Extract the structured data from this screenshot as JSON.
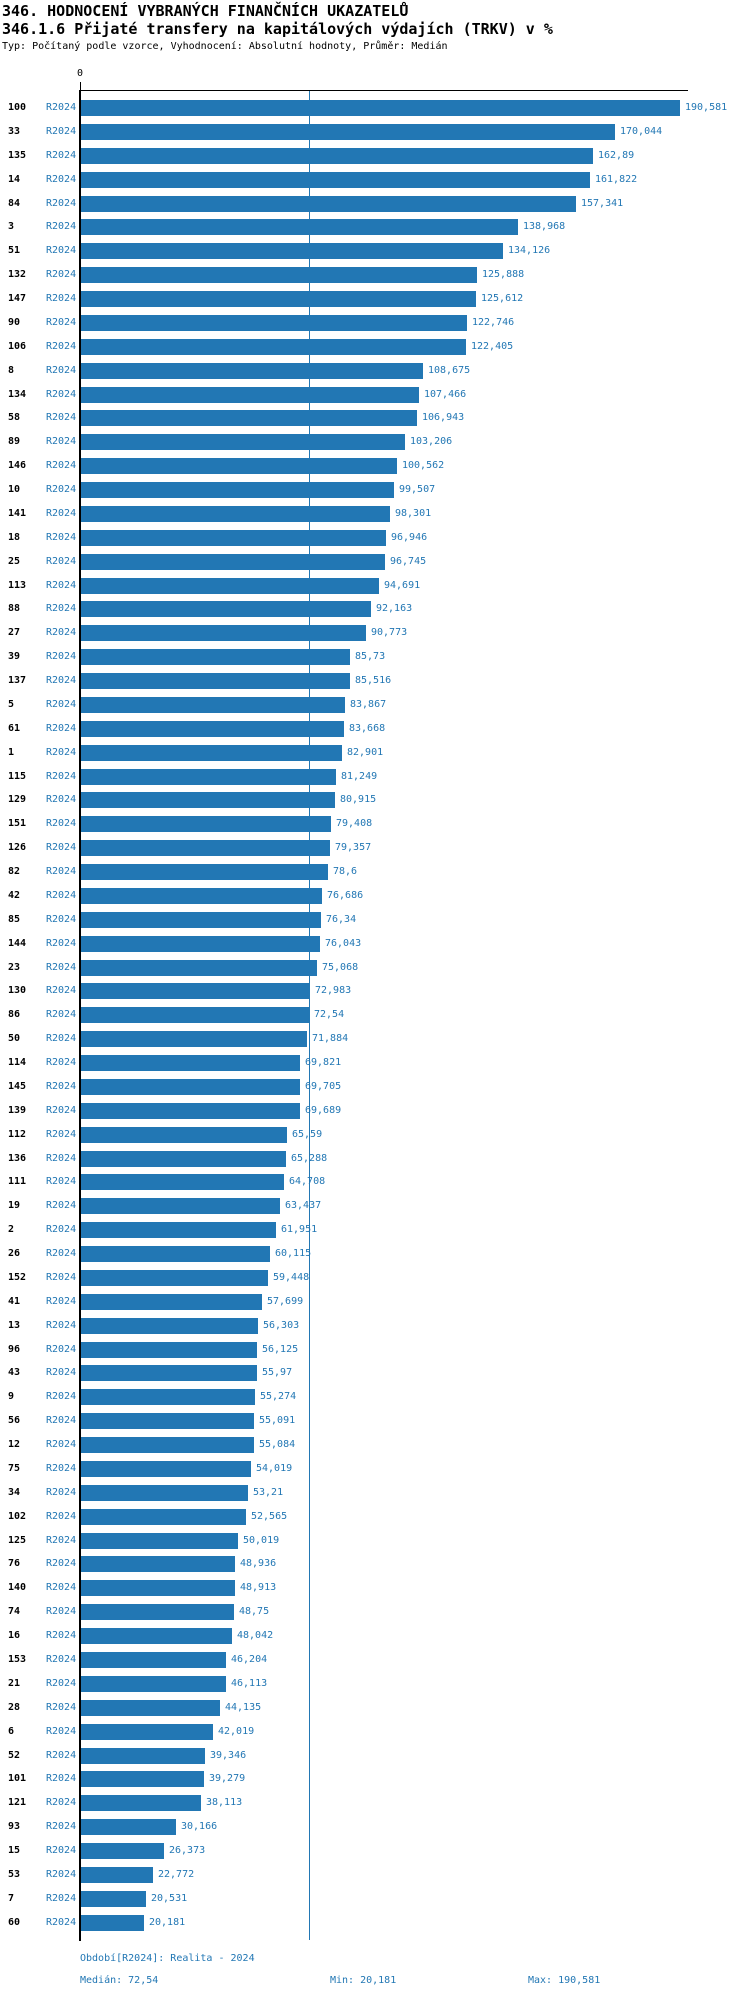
{
  "page": {
    "title": "346. HODNOCENÍ VYBRANÝCH FINANČNÍCH UKAZATELŮ",
    "subtitle": "346.1.6 Přijaté transfery na kapitálových výdajích (TRKV) v %",
    "meta": "Typ: Počítaný podle vzorce, Vyhodnocení: Absolutní hodnoty, Průměr: Medián"
  },
  "chart_data": {
    "type": "bar",
    "orientation": "horizontal",
    "title": "346.1.6 Přijaté transfery na kapitálových výdajích (TRKV) v %",
    "series_label": "R2024",
    "axis": {
      "zero_label": "0",
      "xlim": [
        0,
        192
      ],
      "grid": false
    },
    "bar_color": "#2277b4",
    "axis_color": "#000000",
    "median": 72.54,
    "min": 20.181,
    "max": 190.581,
    "categories": [
      "100",
      "33",
      "135",
      "14",
      "84",
      "3",
      "51",
      "132",
      "147",
      "90",
      "106",
      "8",
      "134",
      "58",
      "89",
      "146",
      "10",
      "141",
      "18",
      "25",
      "113",
      "88",
      "27",
      "39",
      "137",
      "5",
      "61",
      "1",
      "115",
      "129",
      "151",
      "126",
      "82",
      "42",
      "85",
      "144",
      "23",
      "130",
      "86",
      "50",
      "114",
      "145",
      "139",
      "112",
      "136",
      "111",
      "19",
      "2",
      "26",
      "152",
      "41",
      "13",
      "96",
      "43",
      "9",
      "56",
      "12",
      "75",
      "34",
      "102",
      "125",
      "76",
      "140",
      "74",
      "16",
      "153",
      "21",
      "28",
      "6",
      "52",
      "101",
      "121",
      "93",
      "15",
      "53",
      "7",
      "60"
    ],
    "values": [
      190.581,
      170.044,
      162.89,
      161.822,
      157.341,
      138.968,
      134.126,
      125.888,
      125.612,
      122.746,
      122.405,
      108.675,
      107.466,
      106.943,
      103.206,
      100.562,
      99.507,
      98.301,
      96.946,
      96.745,
      94.691,
      92.163,
      90.773,
      85.73,
      85.516,
      83.867,
      83.668,
      82.901,
      81.249,
      80.915,
      79.408,
      79.357,
      78.6,
      76.686,
      76.34,
      76.043,
      75.068,
      72.983,
      72.54,
      71.884,
      69.821,
      69.705,
      69.689,
      65.59,
      65.288,
      64.708,
      63.437,
      61.951,
      60.115,
      59.448,
      57.699,
      56.303,
      56.125,
      55.97,
      55.274,
      55.091,
      55.084,
      54.019,
      53.21,
      52.565,
      50.019,
      48.936,
      48.913,
      48.75,
      48.042,
      46.204,
      46.113,
      44.135,
      42.019,
      39.346,
      39.279,
      38.113,
      30.166,
      26.373,
      22.772,
      20.531,
      20.181
    ],
    "value_labels": [
      "190,581",
      "170,044",
      "162,89",
      "161,822",
      "157,341",
      "138,968",
      "134,126",
      "125,888",
      "125,612",
      "122,746",
      "122,405",
      "108,675",
      "107,466",
      "106,943",
      "103,206",
      "100,562",
      "99,507",
      "98,301",
      "96,946",
      "96,745",
      "94,691",
      "92,163",
      "90,773",
      "85,73",
      "85,516",
      "83,867",
      "83,668",
      "82,901",
      "81,249",
      "80,915",
      "79,408",
      "79,357",
      "78,6",
      "76,686",
      "76,34",
      "76,043",
      "75,068",
      "72,983",
      "72,54",
      "71,884",
      "69,821",
      "69,705",
      "69,689",
      "65,59",
      "65,288",
      "64,708",
      "63,437",
      "61,951",
      "60,115",
      "59,448",
      "57,699",
      "56,303",
      "56,125",
      "55,97",
      "55,274",
      "55,091",
      "55,084",
      "54,019",
      "53,21",
      "52,565",
      "50,019",
      "48,936",
      "48,913",
      "48,75",
      "48,042",
      "46,204",
      "46,113",
      "44,135",
      "42,019",
      "39,346",
      "39,279",
      "38,113",
      "30,166",
      "26,373",
      "22,772",
      "20,531",
      "20,181"
    ],
    "footer": {
      "period": "Období[R2024]: Realita - 2024",
      "median": "Medián: 72,54",
      "min": "Min: 20,181",
      "max": "Max: 190,581"
    }
  }
}
